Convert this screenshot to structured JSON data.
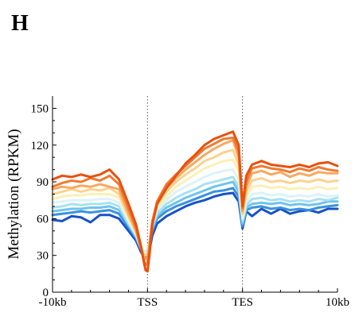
{
  "panel_label": "H",
  "chart_data": {
    "type": "line",
    "title": "",
    "ylabel": "Methylation (RPKM)",
    "xlabel": "",
    "ylim": [
      0,
      160
    ],
    "y_ticks": [
      0,
      30,
      60,
      90,
      120,
      150
    ],
    "x_range": [
      0,
      3
    ],
    "x_ticks": [
      {
        "pos": 0,
        "label": "-10kb"
      },
      {
        "pos": 1,
        "label": "TSS"
      },
      {
        "pos": 2,
        "label": "TES"
      },
      {
        "pos": 3,
        "label": "10kb"
      }
    ],
    "reference_lines": [
      1,
      2
    ],
    "grid": false,
    "legend": "none",
    "series_colors": [
      "#e8500e",
      "#f07a30",
      "#f8a860",
      "#fcd28e",
      "#fbf0b6",
      "#dcf3f8",
      "#a8e0f2",
      "#6ec4ec",
      "#3a92dc",
      "#1752c8"
    ],
    "x": [
      0,
      0.1,
      0.2,
      0.3,
      0.4,
      0.5,
      0.6,
      0.7,
      0.8,
      0.88,
      0.93,
      0.96,
      0.98,
      1.0,
      1.02,
      1.05,
      1.1,
      1.2,
      1.3,
      1.4,
      1.5,
      1.6,
      1.7,
      1.8,
      1.9,
      1.96,
      2.0,
      2.04,
      2.1,
      2.2,
      2.3,
      2.4,
      2.5,
      2.6,
      2.7,
      2.8,
      2.9,
      3.0
    ],
    "series": [
      {
        "values": [
          92,
          95,
          94,
          96,
          94,
          96,
          100,
          92,
          72,
          55,
          38,
          25,
          18,
          17,
          30,
          55,
          72,
          85,
          95,
          105,
          112,
          120,
          125,
          128,
          131,
          120,
          70,
          95,
          104,
          107,
          104,
          103,
          102,
          104,
          102,
          105,
          106,
          103
        ]
      },
      {
        "values": [
          86,
          89,
          91,
          90,
          93,
          91,
          95,
          88,
          68,
          52,
          36,
          26,
          22,
          24,
          35,
          57,
          74,
          88,
          96,
          103,
          110,
          117,
          121,
          125,
          126,
          115,
          68,
          90,
          101,
          103,
          101,
          100,
          98,
          101,
          99,
          102,
          100,
          99
        ]
      },
      {
        "values": [
          84,
          86,
          85,
          87,
          86,
          88,
          86,
          84,
          64,
          50,
          36,
          29,
          27,
          28,
          38,
          58,
          73,
          85,
          93,
          100,
          106,
          112,
          117,
          121,
          124,
          110,
          66,
          86,
          97,
          99,
          96,
          98,
          94,
          97,
          95,
          98,
          97,
          97
        ]
      },
      {
        "values": [
          80,
          82,
          84,
          82,
          84,
          83,
          85,
          80,
          62,
          49,
          36,
          31,
          30,
          31,
          40,
          58,
          71,
          82,
          90,
          96,
          101,
          107,
          110,
          114,
          116,
          104,
          64,
          82,
          91,
          93,
          90,
          91,
          89,
          91,
          90,
          92,
          90,
          91
        ]
      },
      {
        "values": [
          76,
          78,
          79,
          79,
          80,
          80,
          80,
          77,
          60,
          48,
          36,
          32,
          31,
          32,
          40,
          57,
          69,
          78,
          86,
          91,
          96,
          101,
          104,
          107,
          108,
          98,
          62,
          78,
          86,
          87,
          85,
          86,
          84,
          85,
          84,
          86,
          84,
          85
        ]
      },
      {
        "values": [
          73,
          74,
          75,
          75,
          75,
          76,
          76,
          73,
          58,
          47,
          36,
          33,
          32,
          33,
          40,
          55,
          67,
          75,
          82,
          86,
          90,
          94,
          97,
          99,
          100,
          92,
          60,
          74,
          80,
          81,
          79,
          80,
          78,
          79,
          78,
          80,
          78,
          79
        ]
      },
      {
        "values": [
          69,
          70,
          72,
          71,
          72,
          72,
          73,
          70,
          56,
          46,
          36,
          33,
          33,
          34,
          40,
          54,
          64,
          72,
          77,
          81,
          84,
          88,
          90,
          92,
          94,
          86,
          58,
          71,
          76,
          77,
          75,
          76,
          74,
          75,
          74,
          76,
          75,
          77
        ]
      },
      {
        "values": [
          66,
          67,
          68,
          68,
          69,
          69,
          70,
          67,
          55,
          45,
          36,
          33,
          33,
          34,
          40,
          52,
          62,
          69,
          73,
          77,
          80,
          83,
          86,
          88,
          90,
          82,
          56,
          69,
          72,
          73,
          72,
          73,
          71,
          72,
          71,
          72,
          74,
          74
        ]
      },
      {
        "values": [
          63,
          64,
          65,
          66,
          65,
          66,
          67,
          64,
          53,
          44,
          35,
          32,
          31,
          32,
          38,
          50,
          60,
          66,
          70,
          73,
          76,
          79,
          82,
          83,
          85,
          78,
          54,
          67,
          69,
          70,
          68,
          69,
          67,
          68,
          67,
          69,
          70,
          71
        ]
      },
      {
        "values": [
          59,
          58,
          62,
          61,
          57,
          63,
          63,
          60,
          50,
          42,
          33,
          29,
          28,
          29,
          34,
          46,
          56,
          62,
          66,
          70,
          73,
          75,
          78,
          80,
          81,
          74,
          52,
          66,
          62,
          68,
          64,
          68,
          64,
          66,
          67,
          65,
          68,
          68
        ]
      }
    ]
  }
}
